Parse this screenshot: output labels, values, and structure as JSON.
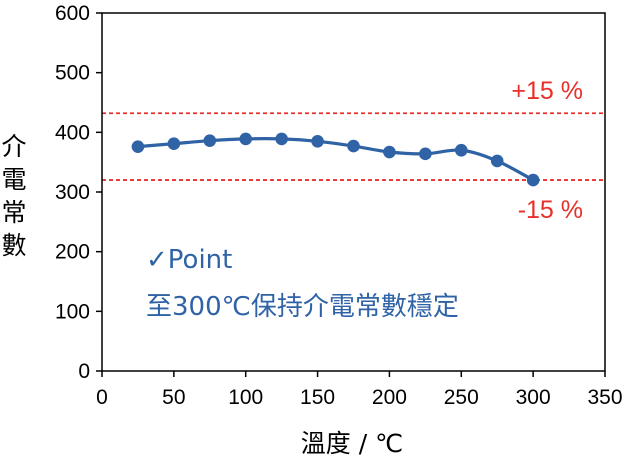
{
  "chart_data": {
    "type": "line",
    "title": "",
    "xlabel": "溫度 / ℃",
    "ylabel": "介電常數",
    "xlim": [
      0,
      350
    ],
    "ylim": [
      0,
      600
    ],
    "xticks": [
      0,
      50,
      100,
      150,
      200,
      250,
      300,
      350
    ],
    "yticks": [
      0,
      100,
      200,
      300,
      400,
      500,
      600
    ],
    "grid": false,
    "series": [
      {
        "x": [
          25,
          50,
          75,
          100,
          125,
          150,
          175,
          200,
          225,
          250,
          275,
          300
        ],
        "y": [
          376,
          381,
          386,
          389,
          389,
          385,
          377,
          367,
          364,
          370,
          352,
          320
        ],
        "color": "#2f63a6"
      }
    ],
    "reference_lines": [
      {
        "y": 432,
        "label": "+15 %",
        "color": "#e8302a",
        "style": "dashed"
      },
      {
        "y": 320,
        "label": "-15 %",
        "color": "#e8302a",
        "style": "dashed"
      }
    ],
    "annotation": {
      "line1": "✓Point",
      "line2": "至300℃保持介電常數穩定",
      "color": "#2f63a6"
    }
  }
}
